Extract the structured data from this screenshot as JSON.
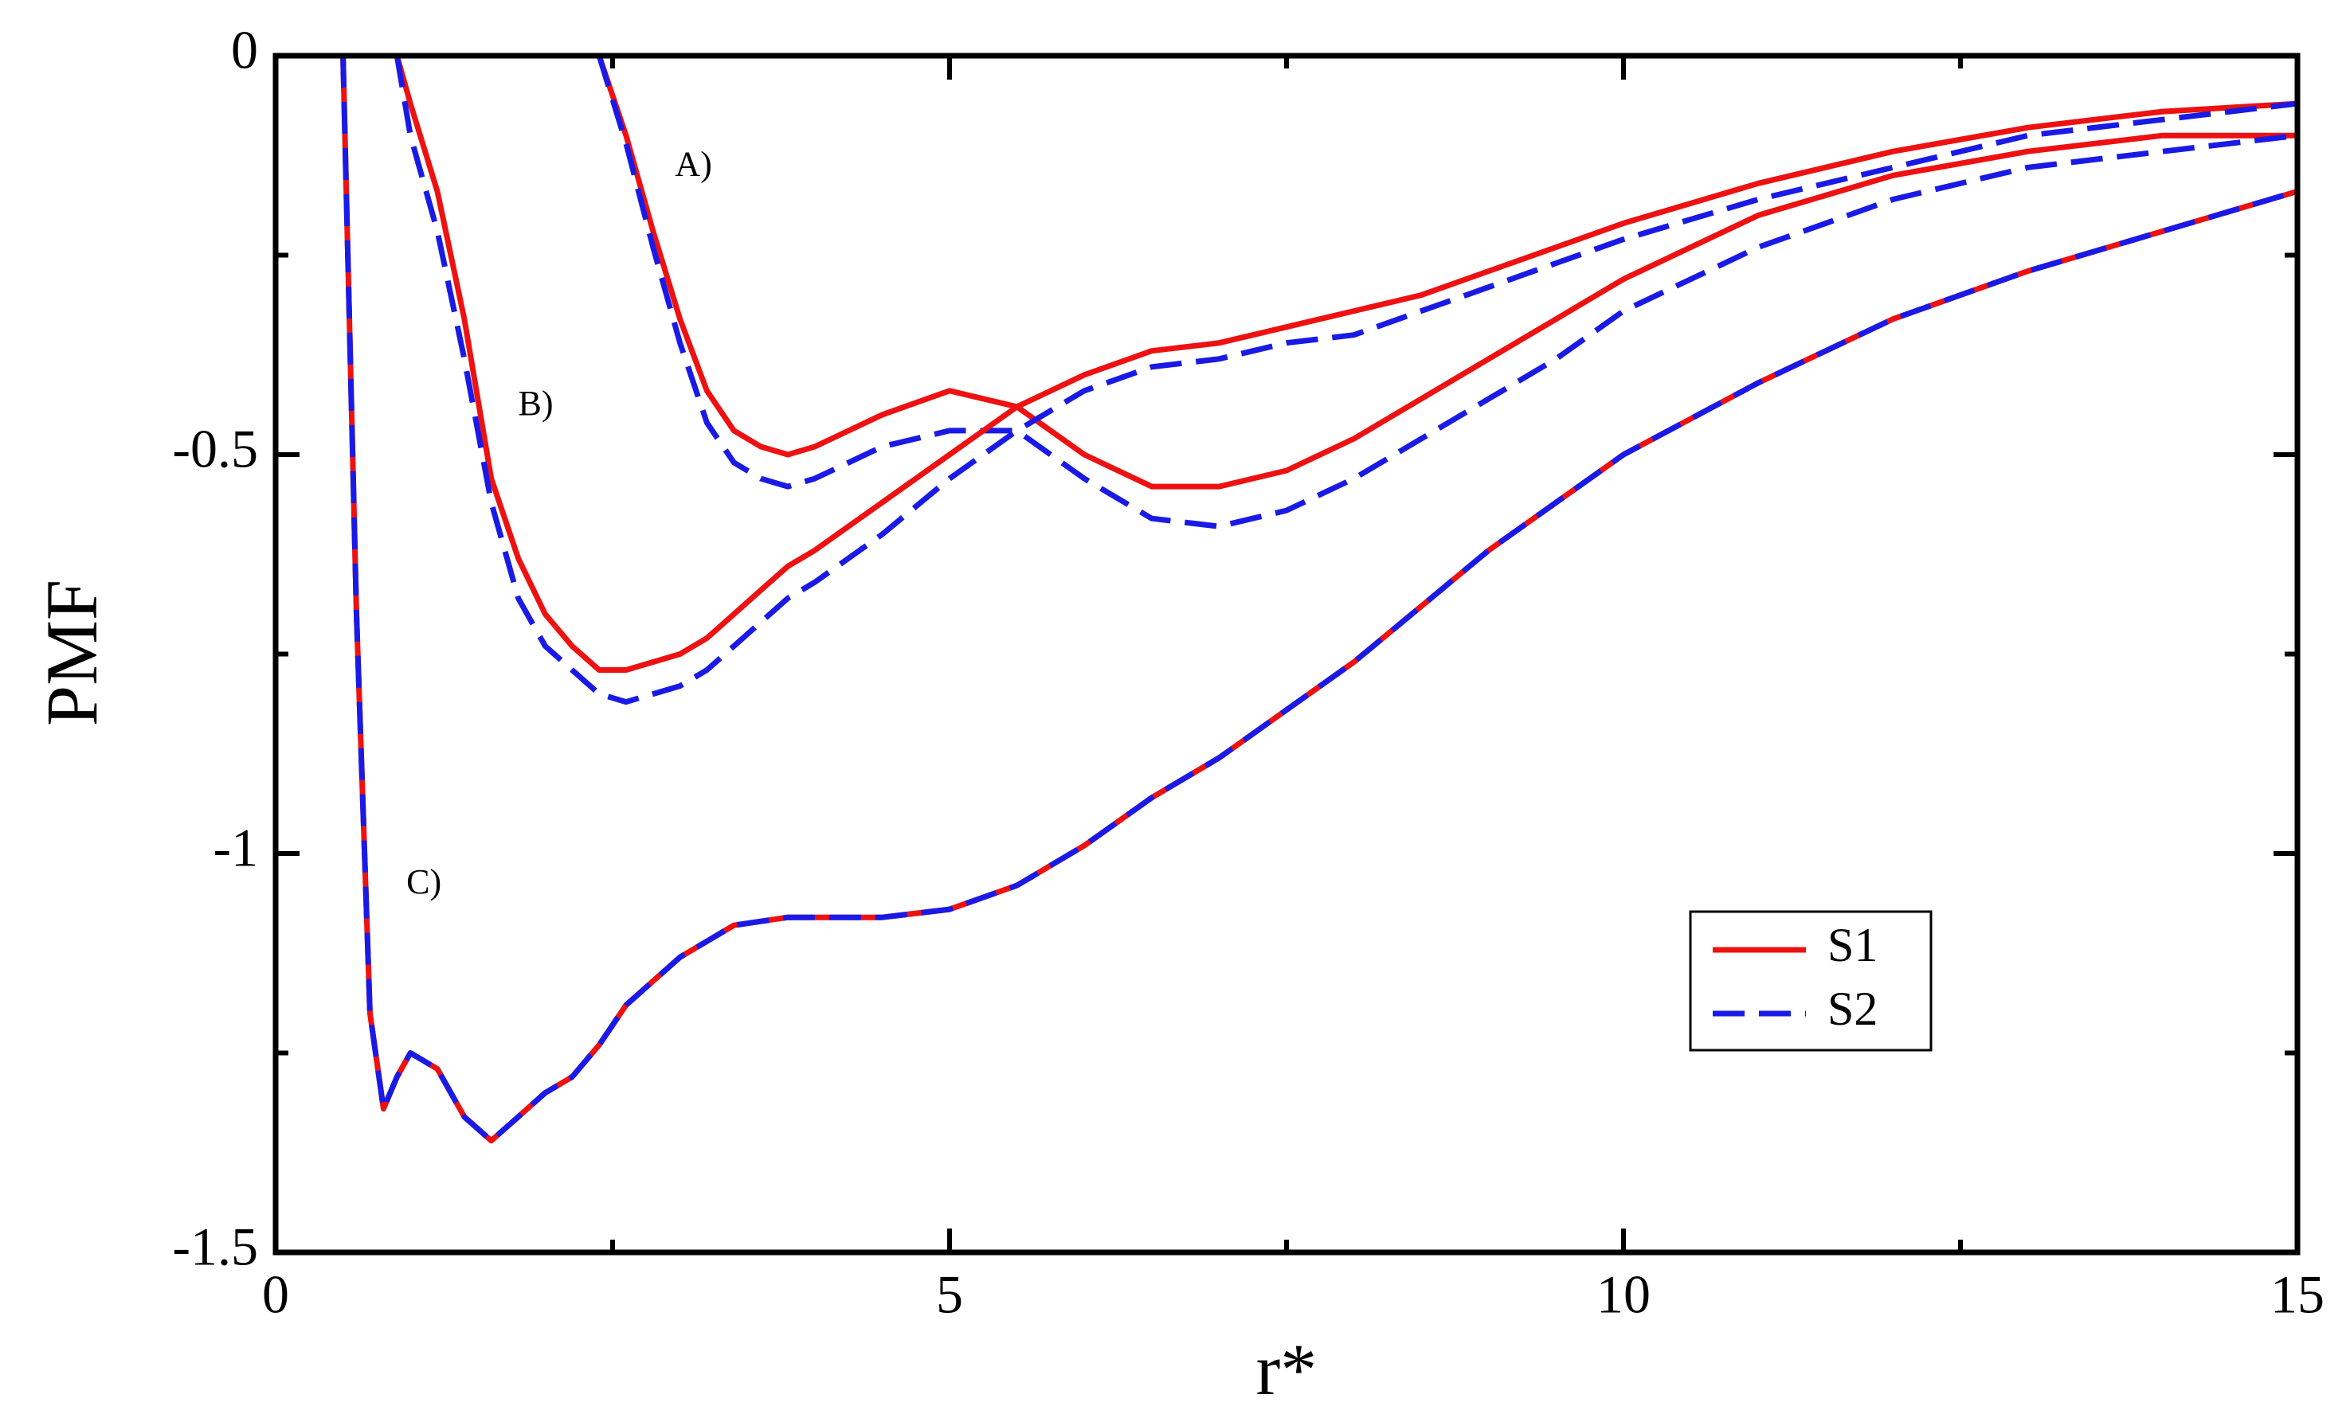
{
  "chart_data": {
    "type": "line",
    "x_label": "r*",
    "y_label": "PMF",
    "x": [
      0.5,
      0.6,
      0.7,
      0.8,
      0.9,
      1,
      1.2,
      1.4,
      1.6,
      1.8,
      2,
      2.2,
      2.4,
      2.6,
      2.8,
      3,
      3.2,
      3.4,
      3.6,
      3.8,
      4,
      4.5,
      5,
      5.5,
      6,
      6.5,
      7,
      7.5,
      8,
      8.5,
      9,
      9.5,
      10,
      11,
      12,
      13,
      14,
      15
    ],
    "series": [
      {
        "name": "S1",
        "color": "#ee1111",
        "dashed": false
      },
      {
        "name": "S2",
        "color": "#1a1ae6",
        "dashed": true
      }
    ],
    "curves": [
      {
        "label": "A)",
        "values": [
          [
            null,
            null,
            null,
            null,
            null,
            null,
            null,
            null,
            null,
            null,
            null,
            null,
            0,
            -0.1,
            -0.22,
            -0.33,
            -0.42,
            -0.47,
            -0.49,
            -0.5,
            -0.49,
            -0.45,
            -0.42,
            -0.44,
            -0.5,
            -0.54,
            -0.54,
            -0.52,
            -0.48,
            -0.43,
            -0.38,
            -0.33,
            -0.28,
            -0.2,
            -0.15,
            -0.12,
            -0.1,
            -0.1
          ],
          [
            null,
            null,
            null,
            null,
            null,
            null,
            null,
            null,
            null,
            null,
            null,
            null,
            0,
            -0.11,
            -0.24,
            -0.36,
            -0.46,
            -0.51,
            -0.53,
            -0.54,
            -0.53,
            -0.49,
            -0.47,
            -0.47,
            -0.53,
            -0.58,
            -0.59,
            -0.57,
            -0.53,
            -0.48,
            -0.43,
            -0.38,
            -0.32,
            -0.24,
            -0.18,
            -0.14,
            -0.12,
            -0.1
          ]
        ]
      },
      {
        "label": "B)",
        "values": [
          [
            null,
            null,
            null,
            null,
            0,
            -0.06,
            -0.17,
            -0.33,
            -0.53,
            -0.63,
            -0.7,
            -0.74,
            -0.77,
            -0.77,
            -0.76,
            -0.75,
            -0.73,
            -0.7,
            -0.67,
            -0.64,
            -0.62,
            -0.56,
            -0.5,
            -0.44,
            -0.4,
            -0.37,
            -0.36,
            -0.34,
            -0.32,
            -0.3,
            -0.27,
            -0.24,
            -0.21,
            -0.16,
            -0.12,
            -0.09,
            -0.07,
            -0.06
          ],
          [
            null,
            null,
            null,
            null,
            0,
            -0.1,
            -0.22,
            -0.38,
            -0.56,
            -0.68,
            -0.74,
            -0.77,
            -0.8,
            -0.81,
            -0.8,
            -0.79,
            -0.77,
            -0.74,
            -0.71,
            -0.68,
            -0.66,
            -0.6,
            -0.53,
            -0.47,
            -0.42,
            -0.39,
            -0.38,
            -0.36,
            -0.35,
            -0.32,
            -0.29,
            -0.26,
            -0.23,
            -0.18,
            -0.14,
            -0.1,
            -0.08,
            -0.06
          ]
        ]
      },
      {
        "label": "C)",
        "values": [
          [
            0,
            -0.7,
            -1.2,
            -1.32,
            -1.28,
            -1.25,
            -1.27,
            -1.33,
            -1.36,
            -1.33,
            -1.3,
            -1.28,
            -1.24,
            -1.19,
            -1.16,
            -1.13,
            -1.11,
            -1.09,
            -1.085,
            -1.08,
            -1.08,
            -1.08,
            -1.07,
            -1.04,
            -0.99,
            -0.93,
            -0.88,
            -0.82,
            -0.76,
            -0.69,
            -0.62,
            -0.56,
            -0.5,
            -0.41,
            -0.33,
            -0.27,
            -0.22,
            -0.17
          ],
          [
            0,
            -0.7,
            -1.2,
            -1.32,
            -1.28,
            -1.25,
            -1.27,
            -1.33,
            -1.36,
            -1.33,
            -1.3,
            -1.28,
            -1.24,
            -1.19,
            -1.16,
            -1.13,
            -1.11,
            -1.09,
            -1.085,
            -1.08,
            -1.08,
            -1.08,
            -1.07,
            -1.04,
            -0.99,
            -0.93,
            -0.88,
            -0.82,
            -0.76,
            -0.69,
            -0.62,
            -0.56,
            -0.5,
            -0.41,
            -0.33,
            -0.27,
            -0.22,
            -0.17
          ]
        ]
      }
    ],
    "xlim": [
      0,
      15
    ],
    "xticks": [
      0,
      5,
      10,
      15
    ],
    "xminorticks": [
      2.5,
      7.5,
      12.5
    ],
    "ylim": [
      -1.5,
      0
    ],
    "yticks": [
      -1.5,
      -1,
      -0.5,
      0
    ],
    "yminorticks": [
      -1.25,
      -0.75,
      -0.25
    ],
    "legend": "lower-right"
  }
}
